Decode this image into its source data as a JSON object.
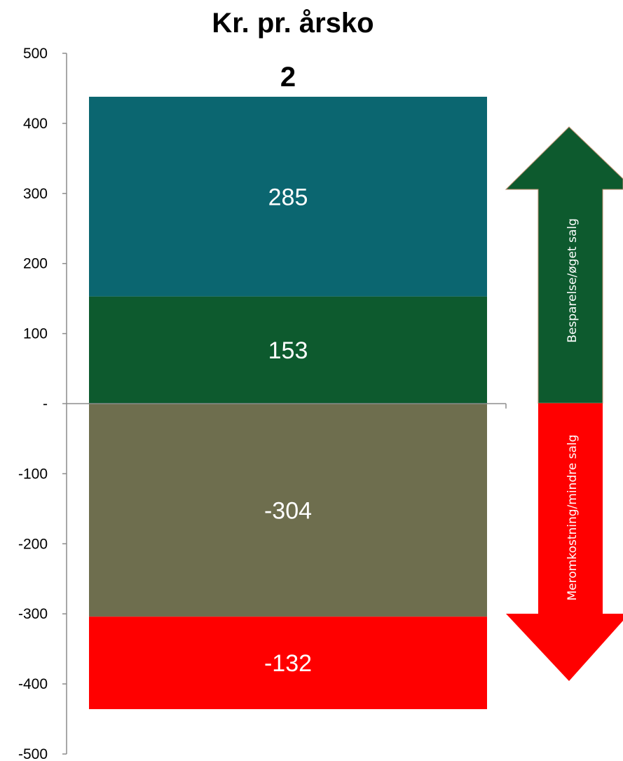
{
  "chart_data": {
    "type": "bar",
    "stacked": true,
    "title": "Kr. pr. årsko",
    "categories": [
      "2"
    ],
    "series": [
      {
        "values": [
          153
        ],
        "color": "#0d5a2e"
      },
      {
        "values": [
          285
        ],
        "color": "#0b6670"
      },
      {
        "values": [
          -304
        ],
        "color": "#6e6e4e"
      },
      {
        "values": [
          -132
        ],
        "color": "#ff0000"
      }
    ],
    "ylim": [
      -500,
      500
    ],
    "yticks": [
      -500,
      -400,
      -300,
      -200,
      -100,
      0,
      100,
      200,
      300,
      400,
      500
    ],
    "ytick_labels": [
      "-500",
      "-400",
      "-300",
      "-200",
      "-100",
      "-",
      "100",
      "200",
      "300",
      "400",
      "500"
    ],
    "xlabel": "",
    "ylabel": "",
    "grid": false
  },
  "annotations": {
    "up_arrow": {
      "label": "Besparelse/øget salg",
      "color": "#0d5a2e"
    },
    "down_arrow": {
      "label": "Meromkostning/mindre salg",
      "color": "#ff0000"
    }
  }
}
